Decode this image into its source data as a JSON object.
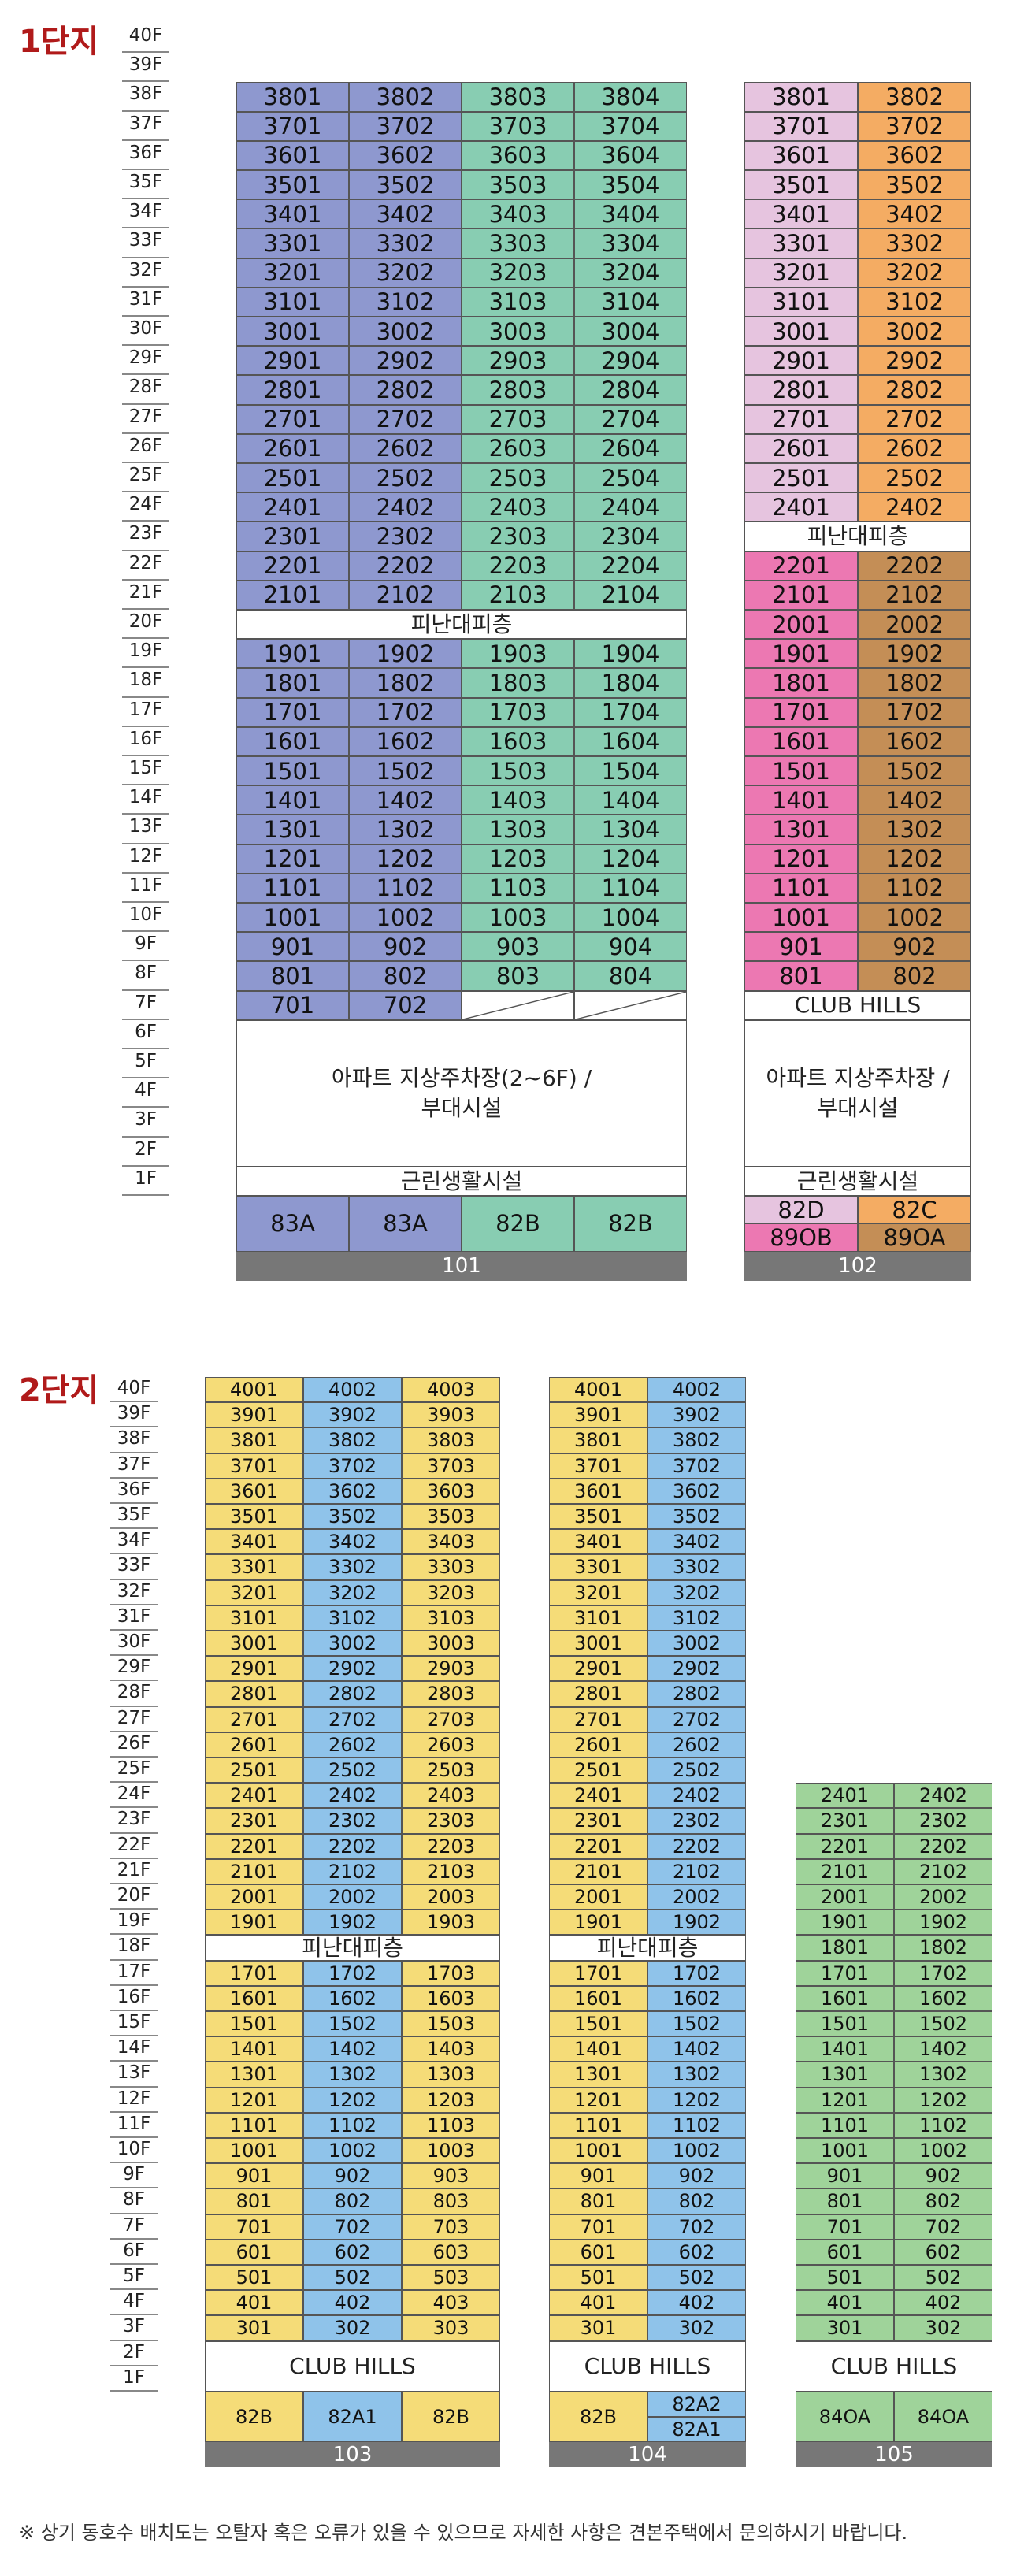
{
  "complex1": {
    "title": "1단지",
    "floors": [
      "40F",
      "39F",
      "38F",
      "37F",
      "36F",
      "35F",
      "34F",
      "33F",
      "32F",
      "31F",
      "30F",
      "29F",
      "28F",
      "27F",
      "26F",
      "25F",
      "24F",
      "23F",
      "22F",
      "21F",
      "20F",
      "19F",
      "18F",
      "17F",
      "16F",
      "15F",
      "14F",
      "13F",
      "12F",
      "11F",
      "10F",
      "9F",
      "8F",
      "7F",
      "6F",
      "5F",
      "4F",
      "3F",
      "2F",
      "1F"
    ],
    "b101": {
      "name": "101",
      "refuge": "피난대피층",
      "parking": "아파트 지상주차장(2~6F) /\n부대시설",
      "retail": "근린생활시설",
      "types": [
        "83A",
        "83A",
        "82B",
        "82B"
      ],
      "colors": [
        "#8e98cf",
        "#8e98cf",
        "#88cdb2",
        "#88cdb2"
      ]
    },
    "b102": {
      "name": "102",
      "refuge": "피난대피층",
      "club": "CLUB HILLS",
      "parking": "아파트 지상주차장 /\n부대시설",
      "retail": "근린생활시설",
      "types_top": [
        "82D",
        "82C"
      ],
      "types_bottom": [
        "89OB",
        "89OA"
      ]
    }
  },
  "complex2": {
    "title": "2단지",
    "floors": [
      "40F",
      "39F",
      "38F",
      "37F",
      "36F",
      "35F",
      "34F",
      "33F",
      "32F",
      "31F",
      "30F",
      "29F",
      "28F",
      "27F",
      "26F",
      "25F",
      "24F",
      "23F",
      "22F",
      "21F",
      "20F",
      "19F",
      "18F",
      "17F",
      "16F",
      "15F",
      "14F",
      "13F",
      "12F",
      "11F",
      "10F",
      "9F",
      "8F",
      "7F",
      "6F",
      "5F",
      "4F",
      "3F",
      "2F",
      "1F"
    ],
    "b103": {
      "name": "103",
      "refuge": "피난대피층",
      "club": "CLUB HILLS",
      "types": [
        "82B",
        "82A1",
        "82B"
      ]
    },
    "b104": {
      "name": "104",
      "refuge": "피난대피층",
      "club": "CLUB HILLS",
      "types": [
        "82B",
        "82A2",
        "82A1"
      ]
    },
    "b105": {
      "name": "105",
      "club": "CLUB HILLS",
      "types": [
        "84OA",
        "84OA"
      ]
    }
  },
  "colors": {
    "blue": "#8e98cf",
    "mint": "#88cdb2",
    "pink_light": "#e6c4df",
    "orange": "#f4ac63",
    "pink": "#ec78b2",
    "brown": "#c48e56",
    "yellow": "#f5dc78",
    "sky": "#8fc3ea",
    "green": "#9fd39a"
  },
  "note": "※ 상기 동호수 배치도는 오탈자 혹은 오류가 있을 수 있으므로 자세한 사항은 견본주택에서 문의하시기 바랍니다."
}
